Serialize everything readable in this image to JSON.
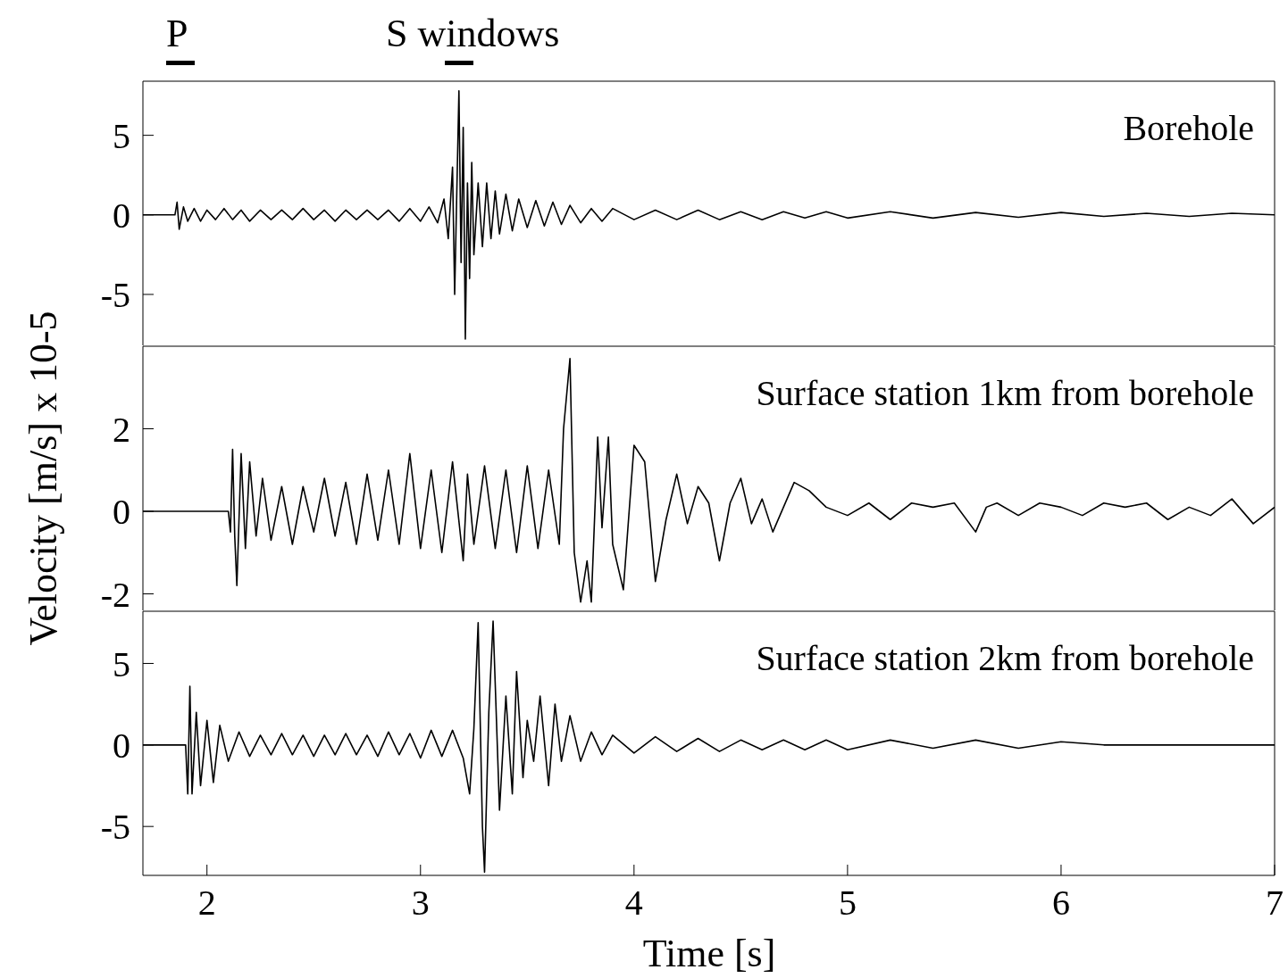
{
  "chart_data": [
    {
      "type": "line",
      "title": "Borehole",
      "xlim": [
        1.7,
        7
      ],
      "xticks": [
        2,
        3,
        4,
        5,
        6,
        7
      ],
      "ylim": [
        -8.2,
        8.4
      ],
      "yticks": [
        -5,
        0,
        5
      ],
      "tick_labels": "y",
      "annotations": [
        "P",
        "S windows"
      ],
      "x": [
        1.7,
        1.85,
        1.86,
        1.87,
        1.89,
        1.91,
        1.94,
        1.97,
        2.0,
        2.04,
        2.08,
        2.12,
        2.16,
        2.2,
        2.25,
        2.3,
        2.35,
        2.4,
        2.45,
        2.5,
        2.55,
        2.6,
        2.65,
        2.7,
        2.75,
        2.8,
        2.85,
        2.9,
        2.95,
        3.0,
        3.04,
        3.08,
        3.11,
        3.13,
        3.15,
        3.16,
        3.18,
        3.19,
        3.2,
        3.21,
        3.22,
        3.23,
        3.24,
        3.25,
        3.27,
        3.29,
        3.31,
        3.33,
        3.35,
        3.37,
        3.4,
        3.43,
        3.46,
        3.5,
        3.54,
        3.58,
        3.62,
        3.66,
        3.7,
        3.75,
        3.8,
        3.85,
        3.9,
        4.0,
        4.1,
        4.2,
        4.3,
        4.4,
        4.5,
        4.6,
        4.7,
        4.8,
        4.9,
        5.0,
        5.2,
        5.4,
        5.6,
        5.8,
        6.0,
        6.2,
        6.4,
        6.6,
        6.8,
        7.0
      ],
      "series": [
        {
          "color": "#000000",
          "values": [
            0,
            0,
            0.8,
            -0.9,
            0.5,
            -0.4,
            0.4,
            -0.4,
            0.3,
            -0.3,
            0.4,
            -0.3,
            0.3,
            -0.4,
            0.3,
            -0.3,
            0.3,
            -0.3,
            0.4,
            -0.3,
            0.3,
            -0.4,
            0.3,
            -0.3,
            0.3,
            -0.3,
            0.3,
            -0.4,
            0.4,
            -0.4,
            0.5,
            -0.5,
            1.0,
            -1.5,
            3.0,
            -5.0,
            7.8,
            -3,
            5.5,
            -7.8,
            2,
            -4,
            3.3,
            -2.5,
            2,
            -2,
            2,
            -1.5,
            1.5,
            -1.2,
            1.3,
            -1,
            1,
            -0.8,
            0.9,
            -0.7,
            0.8,
            -0.6,
            0.6,
            -0.5,
            0.4,
            -0.4,
            0.4,
            -0.3,
            0.3,
            -0.3,
            0.3,
            -0.3,
            0.2,
            -0.3,
            0.2,
            -0.2,
            0.2,
            -0.2,
            0.2,
            -0.2,
            0.15,
            -0.15,
            0.15,
            -0.1,
            0.1,
            -0.1,
            0.1,
            0
          ]
        }
      ]
    },
    {
      "type": "line",
      "title": "Surface station 1km from borehole",
      "ylabel": "Velocity [m/s] x 10-5",
      "xlim": [
        1.7,
        7
      ],
      "xticks": [
        2,
        3,
        4,
        5,
        6,
        7
      ],
      "ylim": [
        -2.4,
        4
      ],
      "yticks": [
        -2,
        0,
        2
      ],
      "tick_labels": "y",
      "x": [
        1.7,
        2.1,
        2.11,
        2.12,
        2.13,
        2.14,
        2.16,
        2.18,
        2.2,
        2.23,
        2.26,
        2.3,
        2.35,
        2.4,
        2.45,
        2.5,
        2.55,
        2.6,
        2.65,
        2.7,
        2.75,
        2.8,
        2.85,
        2.9,
        2.95,
        3.0,
        3.05,
        3.1,
        3.15,
        3.2,
        3.22,
        3.25,
        3.3,
        3.35,
        3.4,
        3.45,
        3.5,
        3.55,
        3.6,
        3.65,
        3.67,
        3.7,
        3.72,
        3.75,
        3.78,
        3.8,
        3.83,
        3.85,
        3.88,
        3.9,
        3.95,
        4.0,
        4.05,
        4.1,
        4.15,
        4.2,
        4.25,
        4.3,
        4.35,
        4.4,
        4.45,
        4.5,
        4.55,
        4.6,
        4.65,
        4.7,
        4.75,
        4.82,
        4.9,
        5.0,
        5.1,
        5.2,
        5.3,
        5.4,
        5.5,
        5.6,
        5.65,
        5.7,
        5.8,
        5.9,
        6.0,
        6.1,
        6.2,
        6.3,
        6.4,
        6.5,
        6.6,
        6.7,
        6.8,
        6.9,
        7.0
      ],
      "series": [
        {
          "color": "#000000",
          "values": [
            0,
            0,
            -0.5,
            1.5,
            -0.6,
            -1.8,
            1.4,
            -0.9,
            1.2,
            -0.6,
            0.8,
            -0.7,
            0.6,
            -0.8,
            0.6,
            -0.5,
            0.8,
            -0.6,
            0.7,
            -0.8,
            0.9,
            -0.7,
            1.0,
            -0.8,
            1.4,
            -0.9,
            1.0,
            -1.0,
            1.2,
            -1.2,
            0.9,
            -0.8,
            1.1,
            -0.9,
            1.0,
            -1.0,
            1.1,
            -0.9,
            1.0,
            -0.8,
            2.0,
            3.7,
            -1.0,
            -2.2,
            -1.2,
            -2.2,
            1.8,
            -0.4,
            1.8,
            -0.8,
            -1.9,
            1.6,
            1.2,
            -1.7,
            -0.2,
            0.9,
            -0.3,
            0.6,
            0.2,
            -1.2,
            0.2,
            0.8,
            -0.3,
            0.3,
            -0.5,
            0.1,
            0.7,
            0.5,
            0.1,
            -0.1,
            0.2,
            -0.2,
            0.2,
            0.1,
            0.2,
            -0.5,
            0.1,
            0.2,
            -0.1,
            0.2,
            0.1,
            -0.1,
            0.2,
            0.1,
            0.2,
            -0.2,
            0.1,
            -0.1,
            0.3,
            -0.3,
            0.1
          ]
        }
      ]
    },
    {
      "type": "line",
      "title": "Surface station 2km from borehole",
      "xlabel": "Time [s]",
      "xlim": [
        1.7,
        7
      ],
      "xticks": [
        2,
        3,
        4,
        5,
        6,
        7
      ],
      "ylim": [
        -8,
        8.2
      ],
      "yticks": [
        -5,
        0,
        5
      ],
      "x": [
        1.7,
        1.9,
        1.91,
        1.92,
        1.93,
        1.95,
        1.97,
        2.0,
        2.03,
        2.06,
        2.1,
        2.15,
        2.2,
        2.25,
        2.3,
        2.35,
        2.4,
        2.45,
        2.5,
        2.55,
        2.6,
        2.65,
        2.7,
        2.75,
        2.8,
        2.85,
        2.9,
        2.95,
        3.0,
        3.05,
        3.1,
        3.15,
        3.2,
        3.23,
        3.25,
        3.27,
        3.29,
        3.3,
        3.32,
        3.34,
        3.37,
        3.4,
        3.43,
        3.45,
        3.48,
        3.5,
        3.53,
        3.56,
        3.6,
        3.63,
        3.66,
        3.7,
        3.75,
        3.8,
        3.85,
        3.9,
        4.0,
        4.1,
        4.2,
        4.3,
        4.4,
        4.5,
        4.6,
        4.7,
        4.8,
        4.9,
        5.0,
        5.2,
        5.4,
        5.6,
        5.8,
        6.0,
        6.2,
        7.0
      ],
      "series": [
        {
          "color": "#000000",
          "values": [
            0,
            0,
            -3,
            3.6,
            -3,
            2,
            -2.5,
            1.5,
            -2.3,
            1.2,
            -1,
            0.8,
            -0.7,
            0.6,
            -0.6,
            0.7,
            -0.6,
            0.6,
            -0.7,
            0.6,
            -0.6,
            0.7,
            -0.6,
            0.6,
            -0.7,
            0.8,
            -0.6,
            0.7,
            -0.8,
            0.9,
            -0.7,
            0.9,
            -0.8,
            -3,
            1,
            7.5,
            -5,
            -7.8,
            2,
            7.6,
            -4,
            3,
            -3,
            4.5,
            -2,
            1.5,
            -1,
            3.0,
            -2.5,
            2.5,
            -1,
            1.8,
            -1,
            0.8,
            -0.6,
            0.6,
            -0.5,
            0.5,
            -0.4,
            0.4,
            -0.4,
            0.3,
            -0.3,
            0.3,
            -0.3,
            0.3,
            -0.3,
            0.3,
            -0.2,
            0.3,
            -0.2,
            0.2,
            0,
            0
          ]
        }
      ]
    }
  ]
}
